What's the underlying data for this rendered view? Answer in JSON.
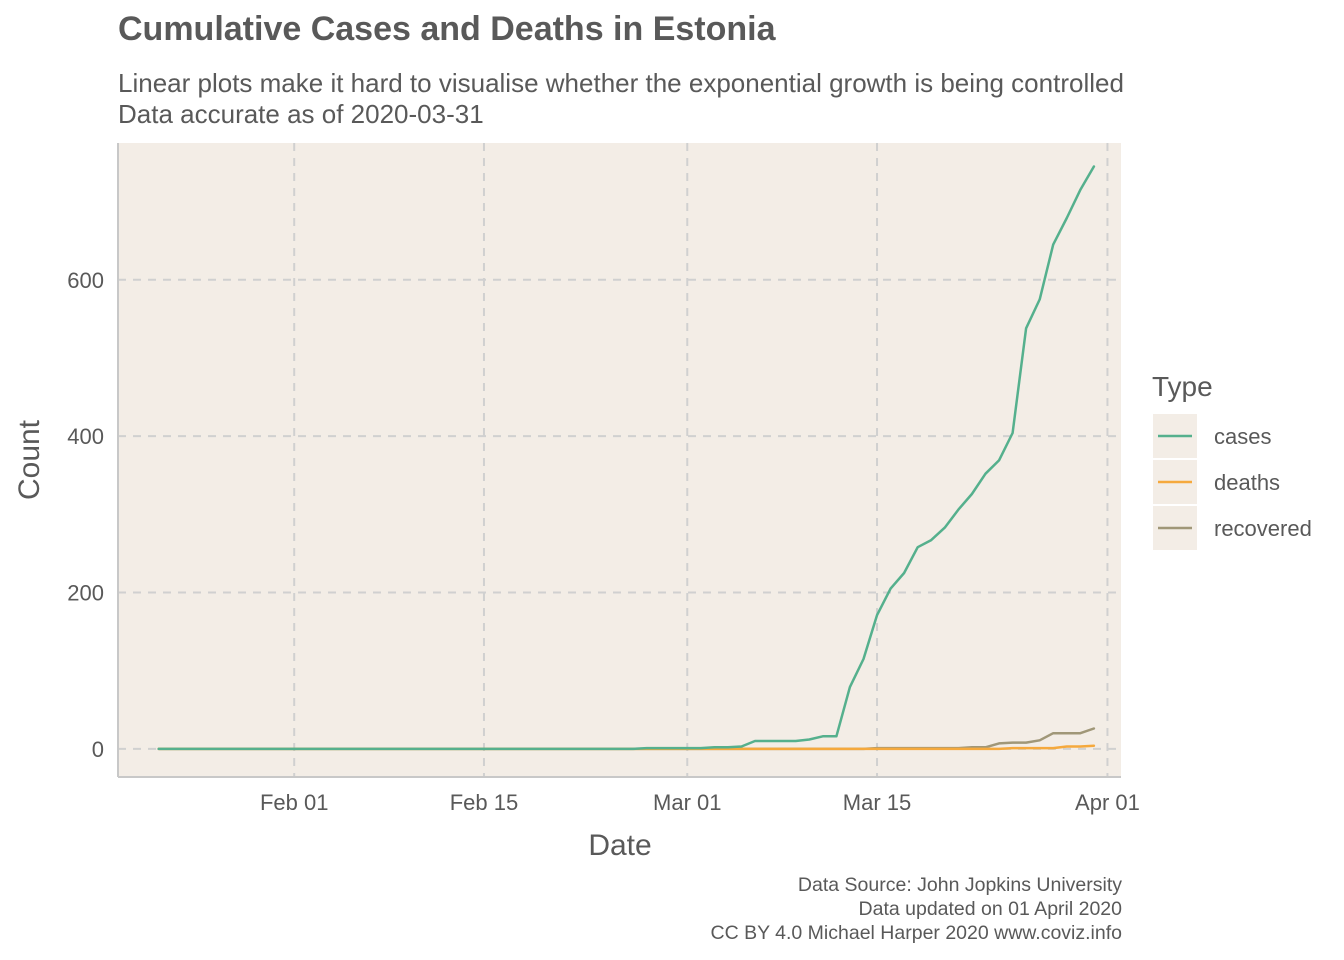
{
  "header": {
    "title": "Cumulative Cases and Deaths in Estonia",
    "subtitle_line1": "Linear plots make it hard to visualise whether the exponential growth is being controlled",
    "subtitle_line2": "Data accurate as of 2020-03-31"
  },
  "caption": {
    "line1": "Data Source: John Jopkins University",
    "line2": "Data updated on 01 April 2020",
    "line3": "CC BY 4.0 Michael Harper 2020 www.coviz.info"
  },
  "chart_data": {
    "type": "line",
    "xlabel": "Date",
    "ylabel": "Count",
    "x_axis_type": "date",
    "xlim": [
      "2020-01-19",
      "2020-04-02"
    ],
    "ylim": [
      -36,
      775
    ],
    "x_ticks": [
      {
        "date": "2020-02-01",
        "label": "Feb 01"
      },
      {
        "date": "2020-02-15",
        "label": "Feb 15"
      },
      {
        "date": "2020-03-01",
        "label": "Mar 01"
      },
      {
        "date": "2020-03-15",
        "label": "Mar 15"
      },
      {
        "date": "2020-04-01",
        "label": "Apr 01"
      }
    ],
    "y_ticks": [
      0,
      200,
      400,
      600
    ],
    "grid": "major dashed",
    "background_color": "#f3ede6",
    "grid_color": "#d0d0d0",
    "legend": {
      "title": "Type",
      "position": "right"
    },
    "series": [
      {
        "name": "cases",
        "color": "#55b08d",
        "points": [
          [
            "2020-01-22",
            0
          ],
          [
            "2020-02-26",
            0
          ],
          [
            "2020-02-27",
            1
          ],
          [
            "2020-02-28",
            1
          ],
          [
            "2020-02-29",
            1
          ],
          [
            "2020-03-01",
            1
          ],
          [
            "2020-03-02",
            1
          ],
          [
            "2020-03-03",
            2
          ],
          [
            "2020-03-04",
            2
          ],
          [
            "2020-03-05",
            3
          ],
          [
            "2020-03-06",
            10
          ],
          [
            "2020-03-07",
            10
          ],
          [
            "2020-03-08",
            10
          ],
          [
            "2020-03-09",
            10
          ],
          [
            "2020-03-10",
            12
          ],
          [
            "2020-03-11",
            16
          ],
          [
            "2020-03-12",
            16
          ],
          [
            "2020-03-13",
            79
          ],
          [
            "2020-03-14",
            115
          ],
          [
            "2020-03-15",
            171
          ],
          [
            "2020-03-16",
            205
          ],
          [
            "2020-03-17",
            225
          ],
          [
            "2020-03-18",
            258
          ],
          [
            "2020-03-19",
            267
          ],
          [
            "2020-03-20",
            283
          ],
          [
            "2020-03-21",
            306
          ],
          [
            "2020-03-22",
            326
          ],
          [
            "2020-03-23",
            352
          ],
          [
            "2020-03-24",
            369
          ],
          [
            "2020-03-25",
            404
          ],
          [
            "2020-03-26",
            538
          ],
          [
            "2020-03-27",
            575
          ],
          [
            "2020-03-28",
            645
          ],
          [
            "2020-03-29",
            679
          ],
          [
            "2020-03-30",
            715
          ],
          [
            "2020-03-31",
            745
          ]
        ]
      },
      {
        "name": "deaths",
        "color": "#f5a93d",
        "points": [
          [
            "2020-01-22",
            0
          ],
          [
            "2020-03-24",
            0
          ],
          [
            "2020-03-25",
            1
          ],
          [
            "2020-03-26",
            1
          ],
          [
            "2020-03-27",
            1
          ],
          [
            "2020-03-28",
            1
          ],
          [
            "2020-03-29",
            3
          ],
          [
            "2020-03-30",
            3
          ],
          [
            "2020-03-31",
            4
          ]
        ]
      },
      {
        "name": "recovered",
        "color": "#a09778",
        "points": [
          [
            "2020-01-22",
            0
          ],
          [
            "2020-03-14",
            0
          ],
          [
            "2020-03-15",
            1
          ],
          [
            "2020-03-16",
            1
          ],
          [
            "2020-03-17",
            1
          ],
          [
            "2020-03-18",
            1
          ],
          [
            "2020-03-19",
            1
          ],
          [
            "2020-03-20",
            1
          ],
          [
            "2020-03-21",
            1
          ],
          [
            "2020-03-22",
            2
          ],
          [
            "2020-03-23",
            2
          ],
          [
            "2020-03-24",
            7
          ],
          [
            "2020-03-25",
            8
          ],
          [
            "2020-03-26",
            8
          ],
          [
            "2020-03-27",
            11
          ],
          [
            "2020-03-28",
            20
          ],
          [
            "2020-03-29",
            20
          ],
          [
            "2020-03-30",
            20
          ],
          [
            "2020-03-31",
            26
          ]
        ]
      }
    ]
  }
}
